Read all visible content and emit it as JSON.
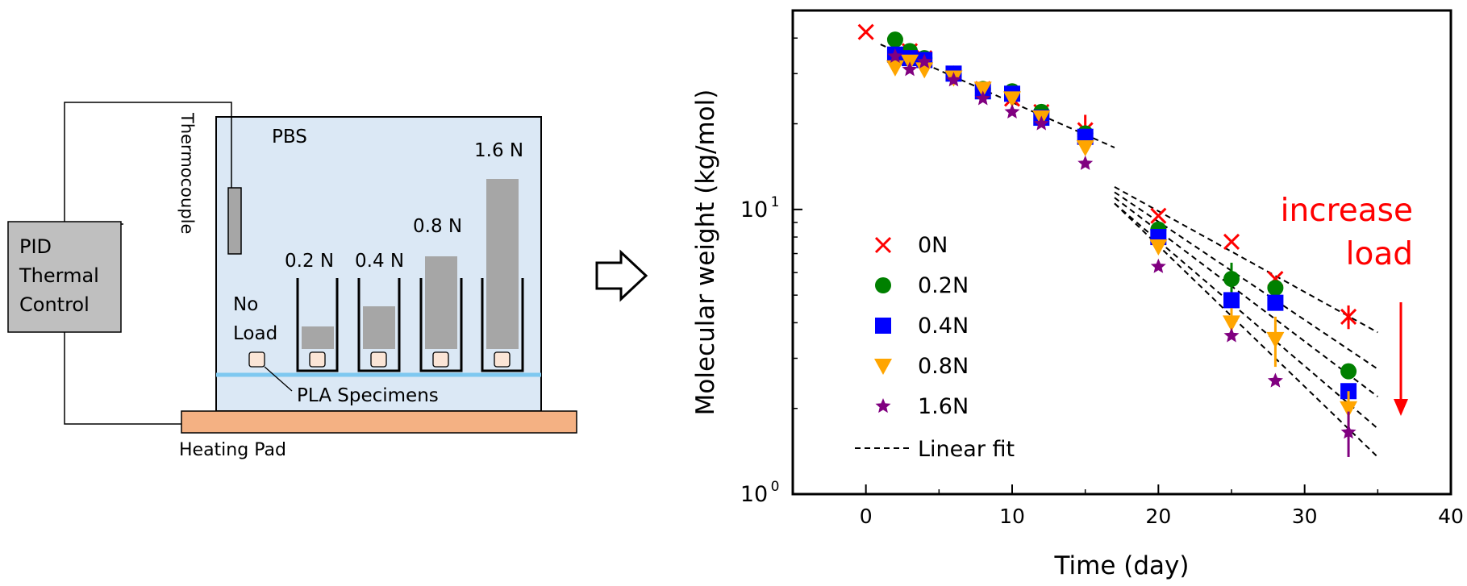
{
  "schematic": {
    "controller_label": [
      "PID",
      "Thermal",
      "Control"
    ],
    "thermocouple_label": "Thermocouple",
    "bath_label": "PBS",
    "no_load_label": [
      "No",
      "Load"
    ],
    "specimens_label": "PLA Specimens",
    "heating_pad_label": "Heating Pad",
    "load_labels": [
      "0.2 N",
      "0.4 N",
      "0.8 N",
      "1.6 N"
    ],
    "load_values_N": [
      0.2,
      0.4,
      0.8,
      1.6
    ],
    "colors": {
      "bath": "#dbe8f5",
      "controller": "#bfbfbf",
      "weight": "#a6a6a6",
      "specimen": "#fbe5d6",
      "pad": "#f4b183",
      "baseline": "#7ec8f0"
    }
  },
  "arrow_icon": "right-arrow-icon",
  "chart_data": {
    "type": "scatter",
    "xlabel": "Time (day)",
    "ylabel": "Molecular weight (kg/mol)",
    "xlim": [
      -5,
      40
    ],
    "ylim": [
      1,
      50
    ],
    "yscale": "log",
    "xticks": [
      0,
      10,
      20,
      30,
      40
    ],
    "xtick_labels": [
      "0",
      "10",
      "20",
      "30",
      "40"
    ],
    "yticks": [
      {
        "value": 10,
        "base": "10",
        "exp": "1"
      },
      {
        "value": 1,
        "base": "10",
        "exp": "0"
      }
    ],
    "legend_position": "lower-left",
    "series": [
      {
        "name": "0N",
        "marker": "x",
        "color": "#ff0000",
        "x": [
          0,
          2,
          3,
          4,
          6,
          8,
          10,
          12,
          15,
          20,
          25,
          28,
          33
        ],
        "y": [
          42,
          38,
          36,
          34,
          30,
          26.5,
          24.5,
          22,
          19,
          9.5,
          7.7,
          5.7,
          4.2
        ],
        "err": [
          0,
          0,
          0,
          0,
          0,
          0,
          0,
          0,
          2.5,
          0,
          0,
          0,
          0.4
        ]
      },
      {
        "name": "0.2N",
        "marker": "circle",
        "color": "#008000",
        "x": [
          2,
          3,
          4,
          6,
          8,
          10,
          12,
          15,
          20,
          25,
          28,
          33
        ],
        "y": [
          39.5,
          36,
          34,
          30,
          26.5,
          26,
          22,
          18.5,
          8.5,
          5.7,
          5.3,
          2.7
        ],
        "err": [
          0,
          0,
          0,
          0,
          0,
          0,
          0,
          0,
          0,
          0.8,
          0,
          0
        ]
      },
      {
        "name": "0.4N",
        "marker": "square",
        "color": "#0000ff",
        "x": [
          2,
          3,
          4,
          6,
          8,
          10,
          12,
          15,
          20,
          25,
          28,
          33
        ],
        "y": [
          35,
          34,
          33.5,
          30,
          26,
          25.5,
          21,
          18,
          8,
          4.8,
          4.7,
          2.3
        ],
        "err": [
          0,
          0,
          0,
          0,
          0,
          0,
          0,
          0,
          0,
          0,
          0,
          0
        ]
      },
      {
        "name": "0.8N",
        "marker": "triangle-down",
        "color": "#ffa500",
        "x": [
          2,
          3,
          4,
          6,
          8,
          10,
          12,
          15,
          20,
          25,
          28,
          33
        ],
        "y": [
          31.5,
          33,
          31,
          29,
          26.5,
          24.5,
          21,
          16.5,
          7.4,
          4,
          3.5,
          2
        ],
        "err": [
          0,
          0,
          0,
          0,
          0,
          0,
          0,
          0,
          0,
          0.5,
          0.7,
          0.3
        ]
      },
      {
        "name": "1.6N",
        "marker": "star",
        "color": "#800080",
        "x": [
          2,
          3,
          4,
          6,
          8,
          10,
          12,
          15,
          20,
          25,
          28,
          33
        ],
        "y": [
          34.5,
          31,
          33,
          28.5,
          24.5,
          22,
          20,
          14.5,
          6.3,
          3.6,
          2.5,
          1.65
        ],
        "err": [
          0,
          0,
          0,
          0,
          0,
          0,
          0,
          0,
          0,
          0,
          0,
          0.3
        ]
      }
    ],
    "fits": [
      {
        "name": "Linear fit",
        "segment": "early",
        "x": [
          1,
          17
        ],
        "y": [
          38,
          16.5
        ]
      },
      {
        "name": "0N",
        "segment": "late",
        "x": [
          17,
          35
        ],
        "y": [
          12,
          3.7
        ]
      },
      {
        "name": "0.2N",
        "segment": "late",
        "x": [
          17,
          35
        ],
        "y": [
          11.5,
          2.75
        ]
      },
      {
        "name": "0.4N",
        "segment": "late",
        "x": [
          17,
          35
        ],
        "y": [
          11,
          2.2
        ]
      },
      {
        "name": "0.8N",
        "segment": "late",
        "x": [
          17,
          35
        ],
        "y": [
          10.5,
          1.7
        ]
      },
      {
        "name": "1.6N",
        "segment": "late",
        "x": [
          17,
          35
        ],
        "y": [
          10.5,
          1.35
        ]
      }
    ],
    "legend_entries": [
      "0N",
      "0.2N",
      "0.4N",
      "0.8N",
      "1.6N",
      "Linear fit"
    ],
    "annotation": {
      "lines": [
        "increase",
        "load"
      ],
      "color": "#ff0000"
    }
  }
}
